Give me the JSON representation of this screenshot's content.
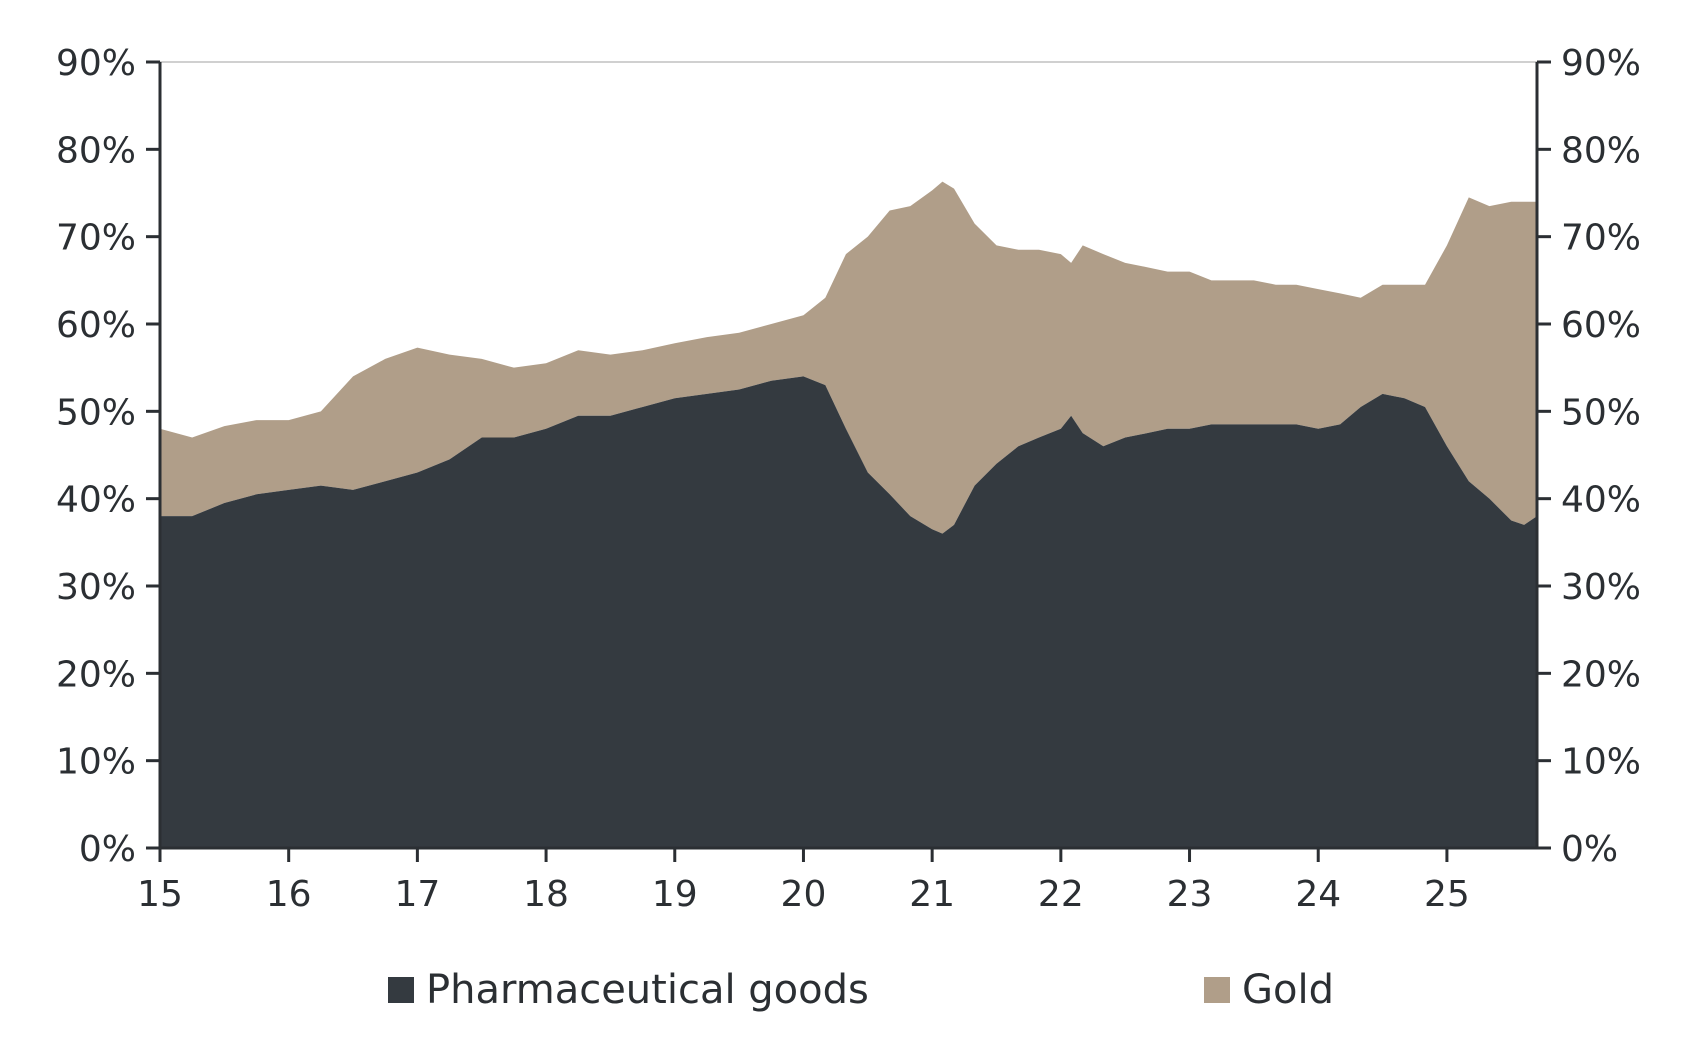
{
  "chart_data": {
    "type": "area",
    "stacked": true,
    "x_tick_labels": [
      "15",
      "16",
      "17",
      "18",
      "19",
      "20",
      "21",
      "22",
      "23",
      "24",
      "25"
    ],
    "y_tick_labels": [
      "0%",
      "10%",
      "20%",
      "30%",
      "40%",
      "50%",
      "60%",
      "70%",
      "80%",
      "90%"
    ],
    "ylim": [
      0,
      90
    ],
    "xlim": [
      15,
      25.7
    ],
    "dual_y_axis_same_scale": true,
    "legend_position": "bottom",
    "colors": {
      "pharma": "#343a40",
      "gold": "#b09e89",
      "axis": "#2b2f33",
      "grid_top": "#d0d0d0"
    },
    "x": [
      15.0,
      15.25,
      15.5,
      15.75,
      16.0,
      16.25,
      16.5,
      16.75,
      17.0,
      17.25,
      17.5,
      17.75,
      18.0,
      18.25,
      18.5,
      18.75,
      19.0,
      19.25,
      19.5,
      19.75,
      20.0,
      20.17,
      20.33,
      20.5,
      20.67,
      20.83,
      21.0,
      21.08,
      21.17,
      21.33,
      21.5,
      21.67,
      21.83,
      22.0,
      22.08,
      22.17,
      22.33,
      22.5,
      22.67,
      22.83,
      23.0,
      23.17,
      23.33,
      23.5,
      23.67,
      23.83,
      24.0,
      24.17,
      24.33,
      24.5,
      24.67,
      24.83,
      25.0,
      25.17,
      25.33,
      25.5,
      25.6,
      25.7
    ],
    "series": [
      {
        "name": "Pharmaceutical goods",
        "values": [
          38,
          38,
          39.5,
          40.5,
          41,
          41.5,
          41,
          42,
          43,
          44.5,
          47,
          47,
          48,
          49.5,
          49.5,
          50.5,
          51.5,
          52,
          52.5,
          53.5,
          54,
          53,
          48,
          43,
          40.5,
          38,
          36.5,
          36,
          37,
          41.5,
          44,
          46,
          47,
          48,
          49.5,
          47.5,
          46,
          47,
          47.5,
          48,
          48,
          48.5,
          48.5,
          48.5,
          48.5,
          48.5,
          48,
          48.5,
          50.5,
          52,
          51.5,
          50.5,
          46,
          42,
          40,
          37.5,
          37,
          38
        ]
      },
      {
        "name": "Gold",
        "values": [
          10,
          9,
          8.8,
          8.5,
          8,
          8.5,
          13,
          14,
          14.3,
          12,
          9,
          8,
          7.5,
          7.5,
          7,
          6.5,
          6.3,
          6.5,
          6.5,
          6.5,
          7,
          10,
          20,
          27,
          32.5,
          35.5,
          38.8,
          40.3,
          38.5,
          30,
          25,
          22.5,
          21.5,
          20,
          17.5,
          21.5,
          22,
          20,
          19,
          18,
          18,
          16.5,
          16.5,
          16.5,
          16,
          16,
          16,
          15,
          12.5,
          12.5,
          13,
          14,
          23,
          32.5,
          33.5,
          36.5,
          37,
          36
        ]
      }
    ]
  },
  "legend": {
    "pharma_label": "Pharmaceutical goods",
    "gold_label": "Gold"
  }
}
